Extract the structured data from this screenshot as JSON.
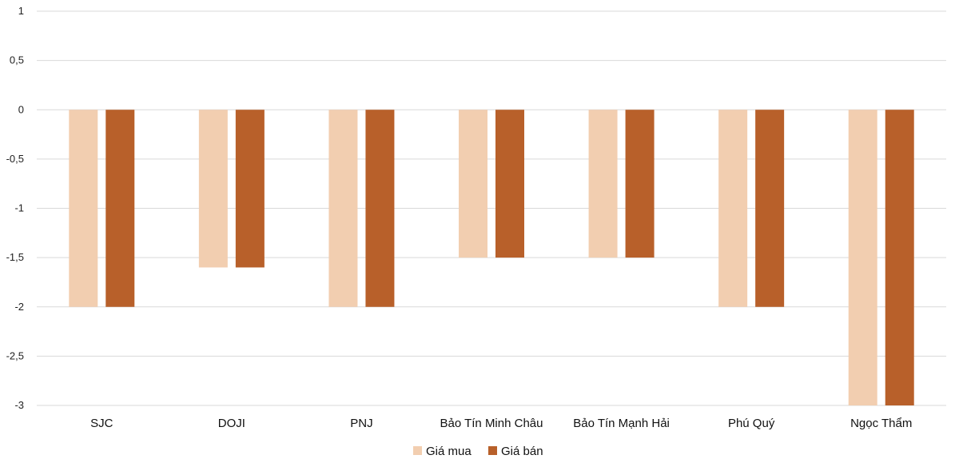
{
  "chart_data": {
    "type": "bar",
    "categories": [
      "SJC",
      "DOJI",
      "PNJ",
      "Bảo Tín Minh Châu",
      "Bảo Tín Mạnh Hải",
      "Phú Quý",
      "Ngọc Thẩm"
    ],
    "series": [
      {
        "name": "Giá mua",
        "color": "#F2CEB0",
        "values": [
          -2,
          -1.6,
          -2,
          -1.5,
          -1.5,
          -2,
          -3
        ]
      },
      {
        "name": "Giá bán",
        "color": "#B8602A",
        "values": [
          -2,
          -1.6,
          -2,
          -1.5,
          -1.5,
          -2,
          -3
        ]
      }
    ],
    "ylim": [
      -3,
      1
    ],
    "yticks": [
      "1",
      "0,5",
      "0",
      "-0,5",
      "-1",
      "-1,5",
      "-2",
      "-2,5",
      "-3"
    ],
    "grid": true,
    "legend_position": "bottom-center",
    "gridline_color": "#D9D9D9"
  }
}
